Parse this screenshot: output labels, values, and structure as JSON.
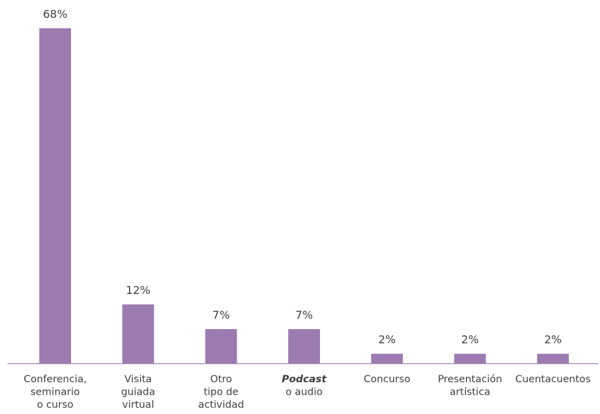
{
  "chart_data": {
    "type": "bar",
    "categories": [
      {
        "lines": [
          "Conferencia,",
          "seminario",
          "o curso"
        ]
      },
      {
        "lines": [
          "Visita",
          "guiada",
          "virtual"
        ]
      },
      {
        "lines": [
          "Otro",
          "tipo de",
          "actividad"
        ]
      },
      {
        "lines": [
          "Podcast",
          "o audio"
        ],
        "emphasis_first_line": true
      },
      {
        "lines": [
          "Concurso"
        ]
      },
      {
        "lines": [
          "Presentación",
          "artística"
        ]
      },
      {
        "lines": [
          "Cuentacuentos"
        ]
      }
    ],
    "values": [
      68,
      12,
      7,
      7,
      2,
      2,
      2
    ],
    "value_labels": [
      "68%",
      "12%",
      "7%",
      "7%",
      "2%",
      "2%",
      "2%"
    ],
    "ylim": [
      0,
      68
    ],
    "grid": false,
    "colors": {
      "bar": "#9c7bb1",
      "axis": "#9c7bb1",
      "text": "#404040"
    }
  }
}
